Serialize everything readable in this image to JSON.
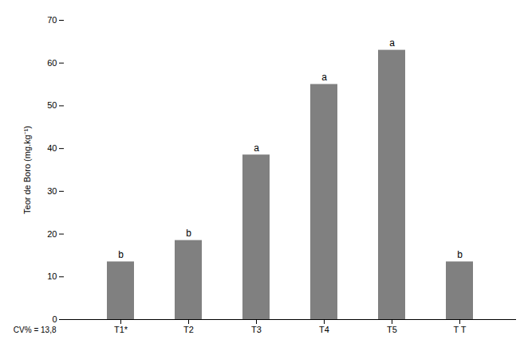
{
  "chart_data": {
    "type": "bar",
    "categories": [
      "T1*",
      "T2",
      "T3",
      "T4",
      "T5",
      "T T"
    ],
    "values": [
      13.5,
      18.5,
      38.5,
      55.0,
      63.0,
      13.5
    ],
    "color": "#808080",
    "ylabel": "Teor de Boro (mg.kg⁻¹)",
    "ylim": [
      0,
      70
    ],
    "yticks": [
      0,
      10,
      20,
      30,
      40,
      50,
      60,
      70
    ],
    "grid": false,
    "annotations": [
      {
        "category": "T1*",
        "text": "b"
      },
      {
        "category": "T2",
        "text": "b"
      },
      {
        "category": "T3",
        "text": "a"
      },
      {
        "category": "T4",
        "text": "a"
      },
      {
        "category": "T5",
        "text": "a"
      },
      {
        "category": "T T",
        "text": "b"
      },
      {
        "text": "CV% = 13,8"
      }
    ]
  }
}
